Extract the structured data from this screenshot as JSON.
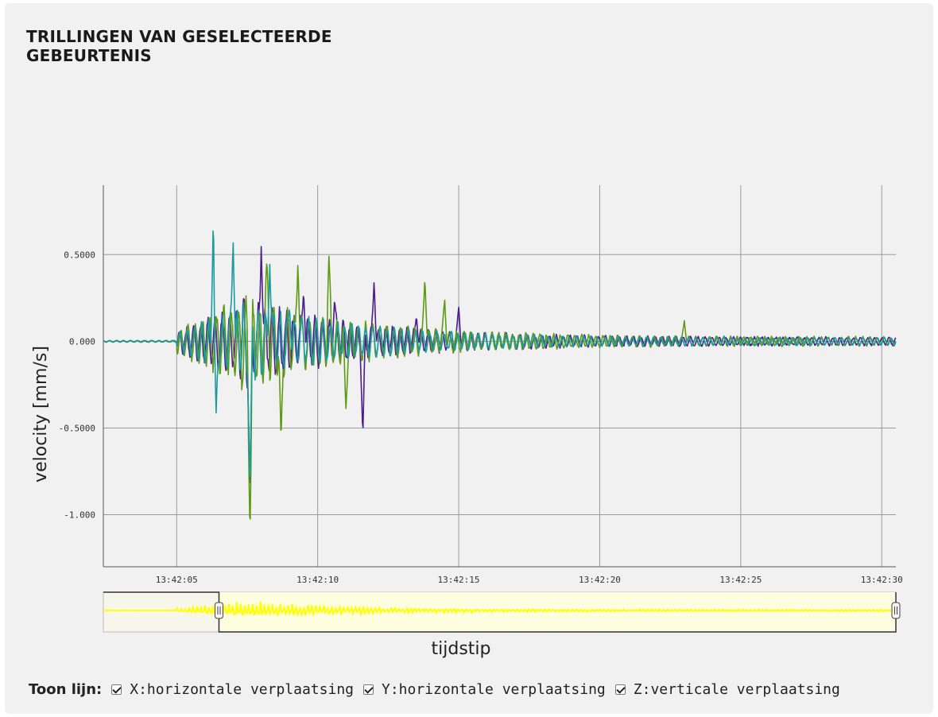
{
  "title_line1": "TRILLINGEN VAN GESELECTEERDE",
  "title_line2": "GEBEURTENIS",
  "legend": {
    "label": "Toon lijn:",
    "items": [
      {
        "label": "X:horizontale verplaatsing",
        "checked": true,
        "color": "#4b1d8f"
      },
      {
        "label": "Y:horizontale verplaatsing",
        "checked": true,
        "color": "#5e9a14"
      },
      {
        "label": "Z:verticale verplaatsing",
        "checked": true,
        "color": "#1a9c9c"
      }
    ]
  },
  "chart_data": {
    "type": "line",
    "xlabel": "tijdstip",
    "ylabel": "velocity [mm/s]",
    "x_ticks": [
      "13:42:05",
      "13:42:10",
      "13:42:15",
      "13:42:20",
      "13:42:25",
      "13:42:30"
    ],
    "y_ticks": [
      "0.5000",
      "0.000",
      "-0.5000",
      "-1.000"
    ],
    "y_tick_values": [
      0.5,
      0.0,
      -0.5,
      -1.0
    ],
    "x_range": [
      "13:42:02.4",
      "13:42:30.5"
    ],
    "ylim": [
      -1.3,
      0.9
    ],
    "grid": true,
    "range_selector": {
      "selected_from": "13:42:06.5",
      "selected_to": "13:42:30.5",
      "color": "#ffff00"
    },
    "series": [
      {
        "name": "X:horizontale verplaatsing",
        "color": "#4b1d8f",
        "amp_scale": 1.0,
        "seed": 7,
        "x": [
          "13:42:07.6",
          "13:42:08.0",
          "13:42:09.5",
          "13:42:10.6",
          "13:42:11.6",
          "13:42:12.0",
          "13:42:13.5",
          "13:42:15.0"
        ],
        "y": [
          -0.93,
          0.56,
          0.3,
          0.25,
          -0.55,
          0.35,
          0.15,
          0.2
        ]
      },
      {
        "name": "Y:horizontale verplaatsing",
        "color": "#5e9a14",
        "amp_scale": 1.1,
        "seed": 19,
        "x": [
          "13:42:07.6",
          "13:42:08.2",
          "13:42:08.7",
          "13:42:09.3",
          "13:42:10.4",
          "13:42:11.0",
          "13:42:13.8",
          "13:42:14.5",
          "13:42:23.0"
        ],
        "y": [
          -1.13,
          0.47,
          -0.6,
          0.47,
          0.5,
          -0.4,
          0.38,
          0.25,
          0.12
        ]
      },
      {
        "name": "Z:verticale verplaatsing",
        "color": "#1a9c9c",
        "amp_scale": 0.9,
        "seed": 31,
        "x": [
          "13:42:06.3",
          "13:42:06.4",
          "13:42:07.0",
          "13:42:07.6",
          "13:42:08.3",
          "13:42:09.0"
        ],
        "y": [
          0.72,
          -0.42,
          0.6,
          -0.88,
          0.45,
          0.2
        ]
      }
    ]
  }
}
